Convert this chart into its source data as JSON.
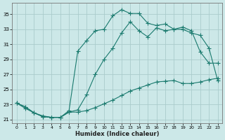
{
  "xlabel": "Humidex (Indice chaleur)",
  "ylabel": "",
  "background_color": "#cce8e8",
  "grid_color": "#b0d4d4",
  "line_color": "#1a7a6e",
  "xlim": [
    -0.5,
    23.5
  ],
  "ylim": [
    20.5,
    36.5
  ],
  "yticks": [
    21,
    23,
    25,
    27,
    29,
    31,
    33,
    35
  ],
  "xticks": [
    0,
    1,
    2,
    3,
    4,
    5,
    6,
    7,
    8,
    9,
    10,
    11,
    12,
    13,
    14,
    15,
    16,
    17,
    18,
    19,
    20,
    21,
    22,
    23
  ],
  "curve1_x": [
    0,
    1,
    2,
    3,
    4,
    5,
    6,
    7,
    8,
    9,
    10,
    11,
    12,
    13,
    14,
    15,
    16,
    17,
    18,
    19,
    20,
    21,
    22,
    23
  ],
  "curve1_y": [
    23.2,
    22.7,
    21.9,
    21.4,
    21.3,
    21.3,
    22.2,
    30.1,
    31.5,
    32.8,
    33.0,
    34.8,
    35.6,
    35.1,
    35.1,
    33.8,
    33.5,
    33.7,
    33.0,
    33.3,
    32.8,
    30.0,
    28.5,
    28.5
  ],
  "curve2_x": [
    0,
    1,
    2,
    3,
    4,
    5,
    6,
    7,
    8,
    9,
    10,
    11,
    12,
    13,
    14,
    15,
    16,
    17,
    18,
    19,
    20,
    21,
    22,
    23
  ],
  "curve2_y": [
    23.2,
    22.7,
    21.9,
    21.4,
    21.3,
    21.3,
    22.0,
    22.3,
    24.3,
    27.0,
    29.0,
    30.5,
    32.5,
    34.0,
    32.8,
    32.0,
    33.2,
    32.8,
    33.0,
    33.0,
    32.5,
    32.2,
    30.5,
    26.2
  ],
  "curve3_x": [
    0,
    1,
    2,
    3,
    4,
    5,
    6,
    7,
    8,
    9,
    10,
    11,
    12,
    13,
    14,
    15,
    16,
    17,
    18,
    19,
    20,
    21,
    22,
    23
  ],
  "curve3_y": [
    23.2,
    22.5,
    21.9,
    21.5,
    21.3,
    21.3,
    22.0,
    22.0,
    22.2,
    22.6,
    23.1,
    23.6,
    24.2,
    24.8,
    25.2,
    25.6,
    26.0,
    26.1,
    26.2,
    25.8,
    25.8,
    26.0,
    26.3,
    26.5
  ]
}
